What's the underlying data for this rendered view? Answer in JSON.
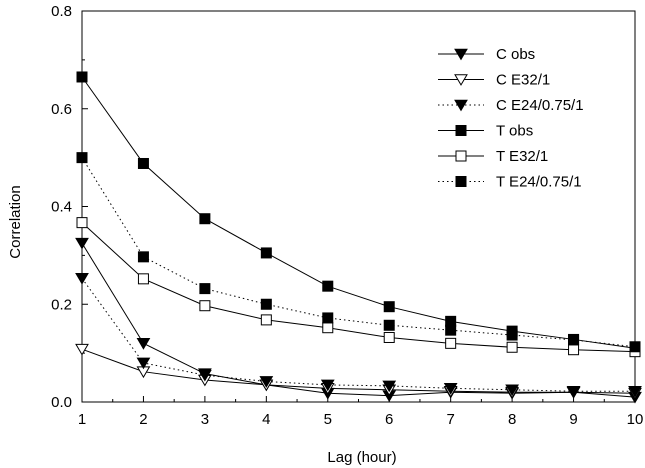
{
  "chart_data": {
    "type": "line",
    "title": "",
    "xlabel": "Lag (hour)",
    "ylabel": "Correlation",
    "xlim": [
      1,
      10
    ],
    "ylim": [
      0,
      0.8
    ],
    "x_ticks": [
      "1",
      "2",
      "3",
      "4",
      "5",
      "6",
      "7",
      "8",
      "9",
      "10"
    ],
    "y_ticks": [
      "0.0",
      "0.2",
      "0.4",
      "0.6",
      "0.8"
    ],
    "grid": false,
    "legend_position": "top-right",
    "x": [
      1,
      2,
      3,
      4,
      5,
      6,
      7,
      8,
      9,
      10
    ],
    "series": [
      {
        "name": "C obs",
        "values": [
          0.325,
          0.12,
          0.058,
          0.035,
          0.018,
          0.013,
          0.02,
          0.018,
          0.02,
          0.01
        ],
        "marker": "triangle-down-filled",
        "line": "solid",
        "color": "#000000"
      },
      {
        "name": "C E32/1",
        "values": [
          0.108,
          0.062,
          0.045,
          0.035,
          0.028,
          0.025,
          0.022,
          0.02,
          0.02,
          0.018
        ],
        "marker": "triangle-down-open",
        "line": "solid",
        "color": "#000000"
      },
      {
        "name": "C E24/0.75/1",
        "values": [
          0.253,
          0.08,
          0.055,
          0.042,
          0.035,
          0.033,
          0.028,
          0.025,
          0.022,
          0.022
        ],
        "marker": "triangle-down-filled",
        "line": "dotted",
        "color": "#000000"
      },
      {
        "name": "T obs",
        "values": [
          0.665,
          0.488,
          0.375,
          0.305,
          0.237,
          0.195,
          0.165,
          0.145,
          0.128,
          0.11
        ],
        "marker": "square-filled",
        "line": "solid",
        "color": "#000000"
      },
      {
        "name": "T E32/1",
        "values": [
          0.367,
          0.252,
          0.197,
          0.168,
          0.152,
          0.132,
          0.12,
          0.112,
          0.107,
          0.103
        ],
        "marker": "square-open",
        "line": "solid",
        "color": "#000000"
      },
      {
        "name": "T E24/0.75/1",
        "values": [
          0.5,
          0.297,
          0.232,
          0.2,
          0.172,
          0.157,
          0.147,
          0.137,
          0.127,
          0.113
        ],
        "marker": "square-filled",
        "line": "dotted",
        "color": "#000000"
      }
    ]
  }
}
